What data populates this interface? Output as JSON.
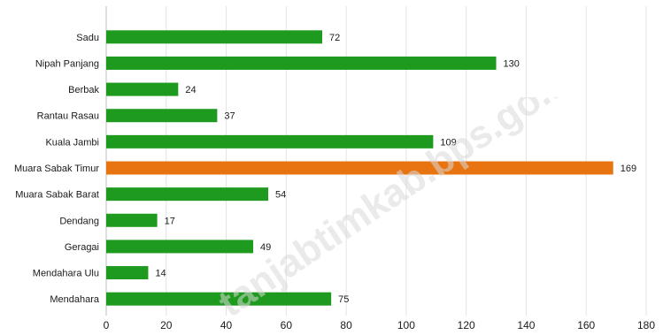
{
  "chart_data": {
    "type": "bar",
    "orientation": "horizontal",
    "categories": [
      "Sadu",
      "Nipah Panjang",
      "Berbak",
      "Rantau Rasau",
      "Kuala Jambi",
      "Muara Sabak Timur",
      "Muara Sabak Barat",
      "Dendang",
      "Geragai",
      "Mendahara Ulu",
      "Mendahara"
    ],
    "values": [
      72,
      130,
      24,
      37,
      109,
      169,
      54,
      17,
      49,
      14,
      75
    ],
    "value_labels": [
      "72",
      "130",
      "24",
      "37",
      "109",
      "169",
      "54",
      "17",
      "49",
      "14",
      "75"
    ],
    "highlight_index": 5,
    "xlim": [
      0,
      180
    ],
    "x_ticks": [
      "0",
      "20",
      "40",
      "60",
      "80",
      "100",
      "120",
      "140",
      "160",
      "180"
    ],
    "grid": "vertical",
    "colors": {
      "bar": "#1e9b1e",
      "highlight": "#e87411",
      "grid": "#e3e3e3",
      "text": "#1a1a1a"
    },
    "title": "",
    "xlabel": "",
    "ylabel": ""
  },
  "watermark": "tanjabtimkab.bps.go.id"
}
